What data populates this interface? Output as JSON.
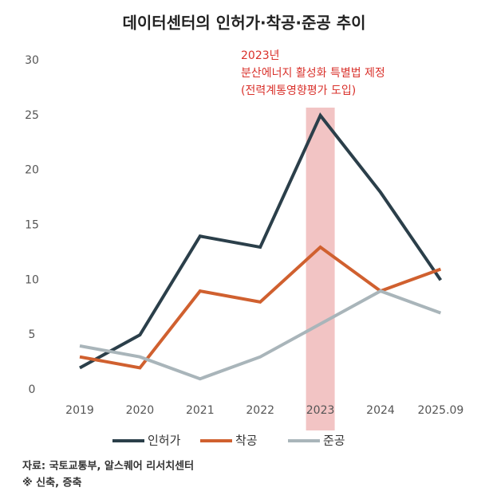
{
  "chart_data": {
    "type": "line",
    "title": "데이터센터의 인허가·착공·준공 추이",
    "categories": [
      "2019",
      "2020",
      "2021",
      "2022",
      "2023",
      "2024",
      "2025.09"
    ],
    "series": [
      {
        "name": "인허가",
        "color": "#2b3f4a",
        "values": [
          2,
          5,
          14,
          13,
          25,
          18,
          10
        ]
      },
      {
        "name": "착공",
        "color": "#d0602f",
        "values": [
          3,
          2,
          9,
          8,
          13,
          9,
          11
        ]
      },
      {
        "name": "준공",
        "color": "#a9b5ba",
        "values": [
          4,
          3,
          1,
          3,
          6,
          9,
          7
        ]
      }
    ],
    "ylim": [
      0,
      30
    ],
    "yticks": [
      0,
      5,
      10,
      15,
      20,
      25,
      30
    ],
    "grid": false,
    "highlight": {
      "category": "2023",
      "color": "#f2c4c4"
    },
    "annotations": [
      "2023년",
      "분산에너지 활성화 특별법 제정",
      "(전력계통영향평가 도입)"
    ],
    "legend": "bottom",
    "source": "자료: 국토교통부, 알스퀘어 리서치센터",
    "note": "※ 신축, 증축"
  }
}
